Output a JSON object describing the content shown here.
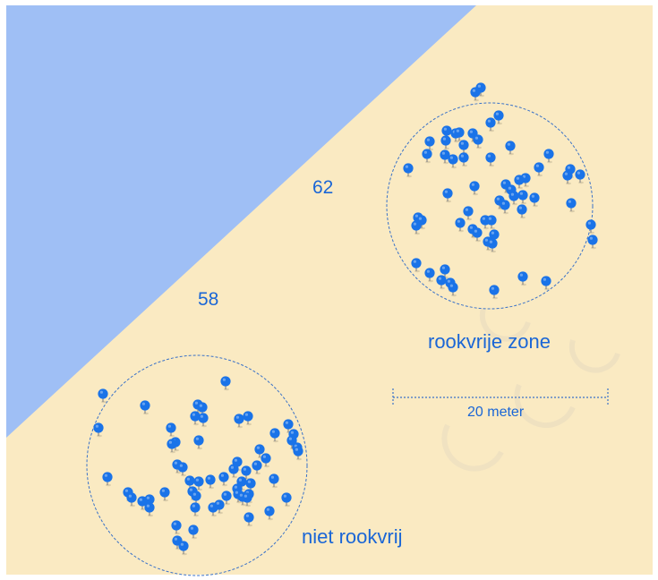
{
  "colors": {
    "sea": "#9fbff5",
    "sand": "#faeac2",
    "pin": "#1a73e8",
    "label": "#1a66d6",
    "circle_stroke": "#3a72c8",
    "frame": "#ffffff"
  },
  "labels": {
    "count_top": "62",
    "count_bottom": "58",
    "zone_top": "rookvrije zone",
    "zone_bottom": "niet rookvrij",
    "scale": "20 meter"
  },
  "icon": "map-pin-icon"
}
